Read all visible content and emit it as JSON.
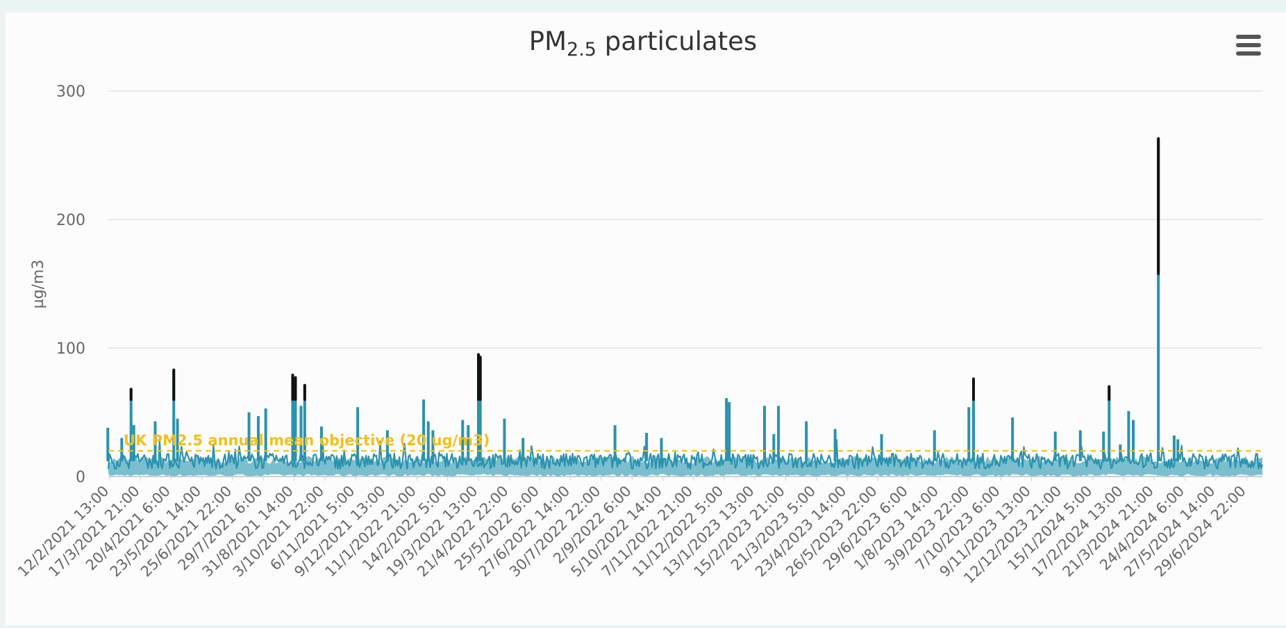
{
  "chart_data": {
    "type": "line",
    "title_main": "PM",
    "title_sub": "2.5",
    "title_rest": " particulates",
    "ylabel": "µg/m3",
    "xlabel": "",
    "ylim": [
      0,
      300
    ],
    "yticks": [
      "0",
      "100",
      "200",
      "300"
    ],
    "grid": true,
    "x_tick_labels": [
      "12/2/2021 13:00",
      "17/3/2021 21:00",
      "20/4/2021 6:00",
      "23/5/2021 14:00",
      "25/6/2021 22:00",
      "29/7/2021 6:00",
      "31/8/2021 14:00",
      "3/10/2021 22:00",
      "6/11/2021 5:00",
      "9/12/2021 13:00",
      "11/1/2022 21:00",
      "14/2/2022 5:00",
      "19/3/2022 13:00",
      "21/4/2022 22:00",
      "25/5/2022 6:00",
      "27/6/2022 14:00",
      "30/7/2022 22:00",
      "2/9/2022 6:00",
      "5/10/2022 14:00",
      "7/11/2022 21:00",
      "11/12/2022 5:00",
      "13/1/2023 13:00",
      "15/2/2023 21:00",
      "21/3/2023 5:00",
      "23/4/2023 14:00",
      "26/5/2023 22:00",
      "29/6/2023 6:00",
      "1/8/2023 14:00",
      "3/9/2023 22:00",
      "7/10/2023 6:00",
      "9/11/2023 13:00",
      "12/12/2023 21:00",
      "15/1/2024 5:00",
      "17/2/2024 13:00",
      "21/3/2024 21:00",
      "24/4/2024 6:00",
      "27/5/2024 14:00",
      "29/6/2024 22:00"
    ],
    "x_range": [
      "12/2/2021 13:00",
      "9/7/2024"
    ],
    "series": [
      {
        "name": "",
        "color": "#2a92ae",
        "peak_color": "#111111"
      }
    ],
    "baseline_band": {
      "low": 0,
      "high": 10,
      "color": "#7bbfcf"
    },
    "peaks": [
      {
        "date": "12/2/2021",
        "value": 38
      },
      {
        "date": "27/2/2021",
        "value": 30
      },
      {
        "date": "9/3/2021",
        "value": 68
      },
      {
        "date": "12/3/2021",
        "value": 40
      },
      {
        "date": "4/4/2021",
        "value": 43
      },
      {
        "date": "24/4/2021",
        "value": 83
      },
      {
        "date": "28/4/2021",
        "value": 45
      },
      {
        "date": "14/7/2021",
        "value": 50
      },
      {
        "date": "24/7/2021",
        "value": 47
      },
      {
        "date": "1/8/2021",
        "value": 53
      },
      {
        "date": "30/8/2021",
        "value": 79
      },
      {
        "date": "2/9/2021",
        "value": 77
      },
      {
        "date": "8/9/2021",
        "value": 55
      },
      {
        "date": "12/9/2021",
        "value": 71
      },
      {
        "date": "30/9/2021",
        "value": 39
      },
      {
        "date": "8/11/2021",
        "value": 54
      },
      {
        "date": "10/12/2021",
        "value": 36
      },
      {
        "date": "18/1/2022",
        "value": 60
      },
      {
        "date": "23/1/2022",
        "value": 43
      },
      {
        "date": "28/1/2022",
        "value": 36
      },
      {
        "date": "1/3/2022",
        "value": 44
      },
      {
        "date": "7/3/2022",
        "value": 40
      },
      {
        "date": "18/3/2022",
        "value": 95
      },
      {
        "date": "20/3/2022",
        "value": 93
      },
      {
        "date": "15/4/2022",
        "value": 45
      },
      {
        "date": "5/5/2022",
        "value": 30
      },
      {
        "date": "12/8/2022",
        "value": 40
      },
      {
        "date": "15/9/2022",
        "value": 34
      },
      {
        "date": "1/10/2022",
        "value": 30
      },
      {
        "date": "10/12/2022",
        "value": 61
      },
      {
        "date": "13/12/2022",
        "value": 58
      },
      {
        "date": "20/1/2023",
        "value": 55
      },
      {
        "date": "30/1/2023",
        "value": 33
      },
      {
        "date": "4/2/2023",
        "value": 55
      },
      {
        "date": "6/3/2023",
        "value": 43
      },
      {
        "date": "6/4/2023",
        "value": 37
      },
      {
        "date": "26/5/2023",
        "value": 33
      },
      {
        "date": "22/7/2023",
        "value": 36
      },
      {
        "date": "28/8/2023",
        "value": 54
      },
      {
        "date": "2/9/2023",
        "value": 76
      },
      {
        "date": "14/10/2023",
        "value": 46
      },
      {
        "date": "29/11/2023",
        "value": 35
      },
      {
        "date": "26/12/2023",
        "value": 36
      },
      {
        "date": "20/1/2024",
        "value": 35
      },
      {
        "date": "26/1/2024",
        "value": 70
      },
      {
        "date": "7/2/2024",
        "value": 25
      },
      {
        "date": "16/2/2024",
        "value": 51
      },
      {
        "date": "21/2/2024",
        "value": 44
      },
      {
        "date": "19/3/2024",
        "value": 263
      },
      {
        "date": "5/4/2024",
        "value": 32
      },
      {
        "date": "9/4/2024",
        "value": 29
      }
    ],
    "reference_line": {
      "value": 20,
      "label": "UK PM2.5 annual mean objective (20 ug/m3)",
      "color": "#f2c01a"
    }
  },
  "menu": {
    "icon": "hamburger-menu-icon"
  }
}
